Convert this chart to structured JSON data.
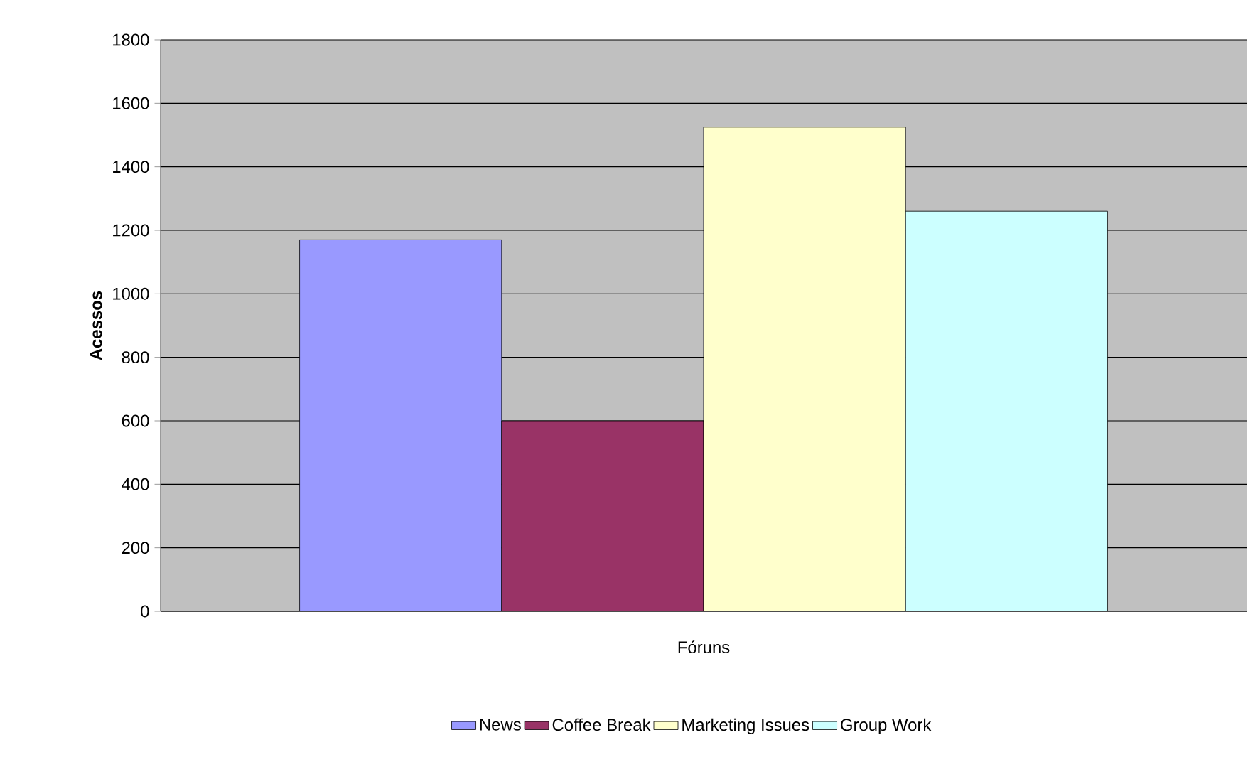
{
  "chart_data": {
    "type": "bar",
    "xlabel": "Fóruns",
    "ylabel": "Acessos",
    "categories": [
      null
    ],
    "series": [
      {
        "name": "News",
        "color": "#9999ff",
        "values": [
          1170
        ]
      },
      {
        "name": "Coffee Break",
        "color": "#993366",
        "values": [
          600
        ]
      },
      {
        "name": "Marketing Issues",
        "color": "#ffffcc",
        "values": [
          1525
        ]
      },
      {
        "name": "Group Work",
        "color": "#ccffff",
        "values": [
          1260
        ]
      }
    ],
    "ylim": [
      0,
      1800
    ],
    "yticks": [
      0,
      200,
      400,
      600,
      800,
      1000,
      1200,
      1400,
      1600,
      1800
    ],
    "grid": "y",
    "legend": "bottom"
  }
}
